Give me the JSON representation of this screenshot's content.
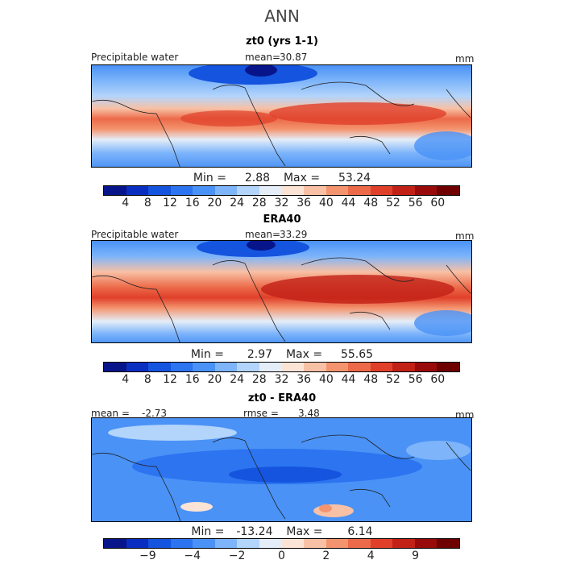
{
  "page": {
    "title": "ANN"
  },
  "colors": {
    "scale": [
      "#08158a",
      "#0a2fc0",
      "#1554de",
      "#2c74f0",
      "#4a92f6",
      "#7db4fa",
      "#b3d4fb",
      "#e4edf8",
      "#fbe3d6",
      "#f8c1a5",
      "#f3946f",
      "#ec6a49",
      "#e0402a",
      "#c22117",
      "#990a0a",
      "#6f0000"
    ]
  },
  "panels": [
    {
      "title": "zt0 (yrs 1-1)",
      "left_label": "Precipitable water",
      "mean_label": "mean=",
      "mean_value": "30.87",
      "units": "mm",
      "min_label": "Min =",
      "min_value": "2.88",
      "max_label": "Max =",
      "max_value": "53.24",
      "colorbar_ticks": [
        "4",
        "8",
        "12",
        "16",
        "20",
        "24",
        "28",
        "32",
        "36",
        "40",
        "44",
        "48",
        "52",
        "56",
        "60"
      ]
    },
    {
      "title": "ERA40",
      "left_label": "Precipitable water",
      "mean_label": "mean=",
      "mean_value": "33.29",
      "units": "mm",
      "min_label": "Min =",
      "min_value": "2.97",
      "max_label": "Max =",
      "max_value": "55.65",
      "colorbar_ticks": [
        "4",
        "8",
        "12",
        "16",
        "20",
        "24",
        "28",
        "32",
        "36",
        "40",
        "44",
        "48",
        "52",
        "56",
        "60"
      ]
    },
    {
      "title": "zt0 - ERA40",
      "left_label": "mean =",
      "left_value": "-2.73",
      "rmse_label": "rmse =",
      "rmse_value": "3.48",
      "units": "mm",
      "min_label": "Min =",
      "min_value": "-13.24",
      "max_label": "Max =",
      "max_value": "6.14",
      "colorbar_ticks": [
        "−9",
        "−4",
        "−2",
        "0",
        "2",
        "4",
        "9"
      ]
    }
  ]
}
